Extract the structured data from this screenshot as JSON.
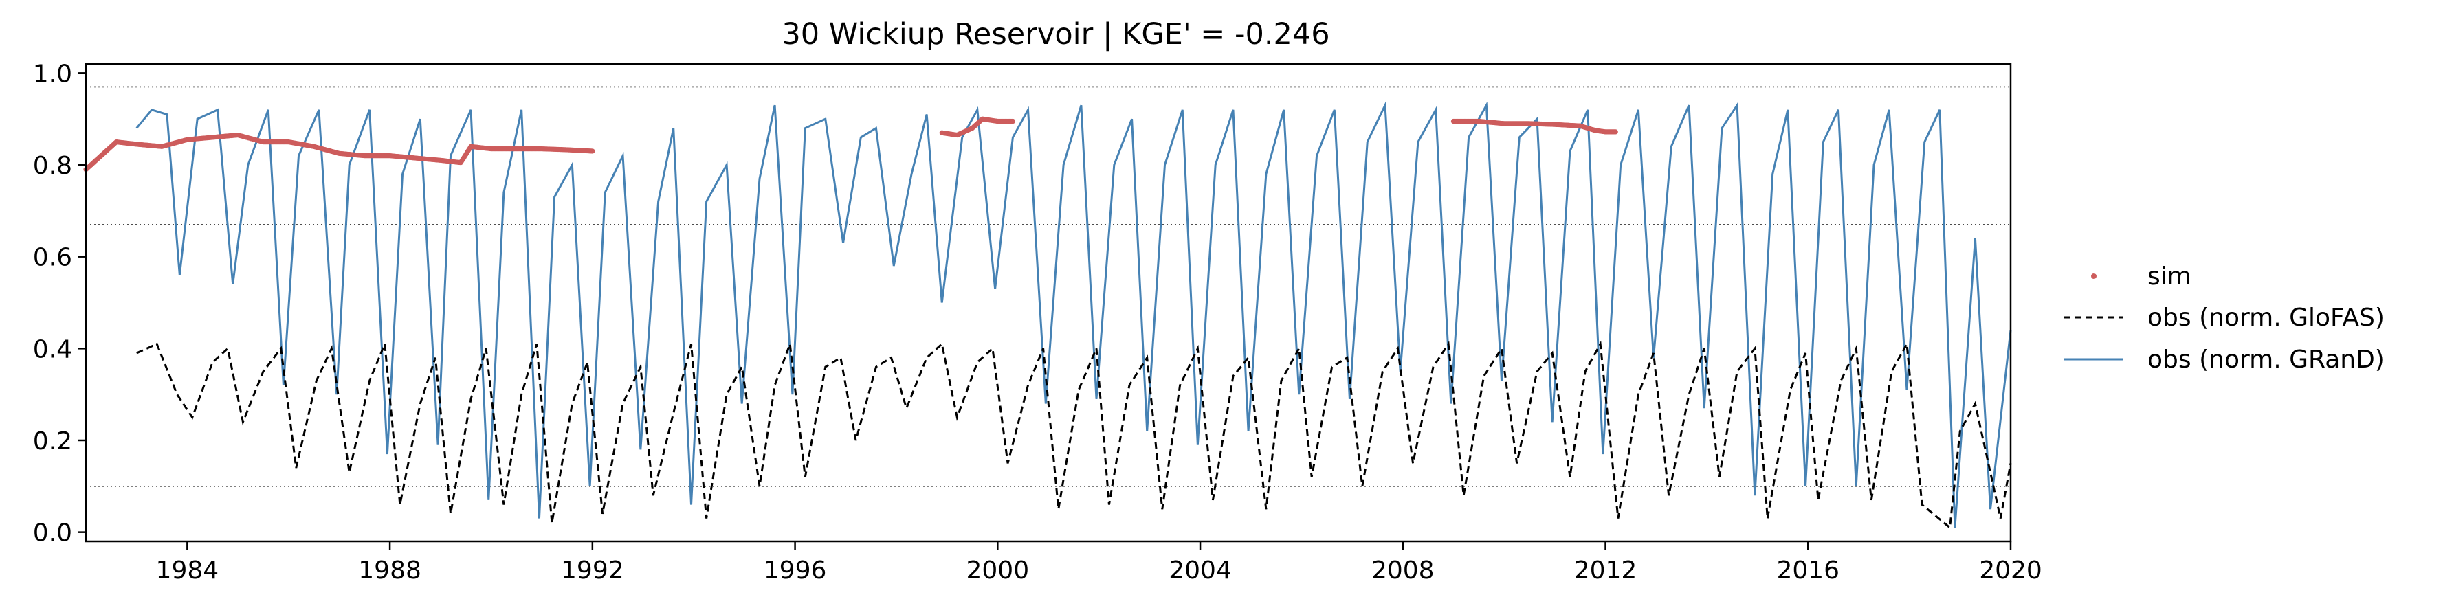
{
  "chart_data": {
    "type": "line",
    "title": "30  Wickiup Reservoir | KGE' = -0.246",
    "xlabel": "",
    "ylabel": "",
    "xlim": [
      1982.0,
      2020.0
    ],
    "ylim": [
      -0.02,
      1.02
    ],
    "x_ticks": [
      1984,
      1988,
      1992,
      1996,
      2000,
      2004,
      2008,
      2012,
      2016,
      2020
    ],
    "x_tick_labels": [
      "1984",
      "1988",
      "1992",
      "1996",
      "2000",
      "2004",
      "2008",
      "2012",
      "2016",
      "2020"
    ],
    "y_ticks": [
      0.0,
      0.2,
      0.4,
      0.6,
      0.8,
      1.0
    ],
    "y_tick_labels": [
      "0.0",
      "0.2",
      "0.4",
      "0.6",
      "0.8",
      "1.0"
    ],
    "reference_lines": [
      0.97,
      0.67,
      0.1
    ],
    "legend_position": "right",
    "grid": false,
    "colors": {
      "sim": "#cd5c5c",
      "obs_glofas": "#000000",
      "obs_grand": "#4682b4"
    },
    "series": [
      {
        "name": "sim",
        "style": "points",
        "segments": [
          [
            [
              1982.0,
              0.79
            ],
            [
              1982.3,
              0.82
            ],
            [
              1982.6,
              0.85
            ],
            [
              1983.0,
              0.845
            ],
            [
              1983.5,
              0.84
            ],
            [
              1984.0,
              0.855
            ],
            [
              1984.5,
              0.86
            ],
            [
              1985.0,
              0.865
            ],
            [
              1985.5,
              0.85
            ],
            [
              1986.0,
              0.85
            ],
            [
              1986.5,
              0.84
            ],
            [
              1987.0,
              0.825
            ],
            [
              1987.5,
              0.82
            ],
            [
              1988.0,
              0.82
            ],
            [
              1988.5,
              0.815
            ],
            [
              1989.0,
              0.81
            ],
            [
              1989.4,
              0.805
            ],
            [
              1989.6,
              0.84
            ],
            [
              1990.0,
              0.835
            ],
            [
              1990.5,
              0.835
            ],
            [
              1991.0,
              0.835
            ],
            [
              1991.5,
              0.833
            ],
            [
              1992.0,
              0.83
            ]
          ],
          [
            [
              1998.9,
              0.87
            ],
            [
              1999.2,
              0.865
            ],
            [
              1999.5,
              0.88
            ],
            [
              1999.7,
              0.9
            ],
            [
              2000.0,
              0.895
            ],
            [
              2000.3,
              0.895
            ]
          ],
          [
            [
              2009.0,
              0.895
            ],
            [
              2009.5,
              0.895
            ],
            [
              2010.0,
              0.89
            ],
            [
              2010.5,
              0.89
            ],
            [
              2011.0,
              0.888
            ],
            [
              2011.5,
              0.885
            ],
            [
              2011.8,
              0.875
            ],
            [
              2012.0,
              0.872
            ],
            [
              2012.2,
              0.872
            ]
          ]
        ]
      },
      {
        "name": "obs (norm. GloFAS)",
        "style": "dashed",
        "x": [
          1983.0,
          1983.4,
          1983.8,
          1984.1,
          1984.5,
          1984.8,
          1985.1,
          1985.5,
          1985.85,
          1986.15,
          1986.55,
          1986.85,
          1987.2,
          1987.6,
          1987.9,
          1988.2,
          1988.6,
          1988.9,
          1989.2,
          1989.6,
          1989.9,
          1990.25,
          1990.6,
          1990.9,
          1991.2,
          1991.6,
          1991.9,
          1992.2,
          1992.6,
          1992.95,
          1993.2,
          1993.6,
          1993.95,
          1994.25,
          1994.65,
          1994.95,
          1995.3,
          1995.6,
          1995.9,
          1996.2,
          1996.6,
          1996.9,
          1997.2,
          1997.6,
          1997.9,
          1998.2,
          1998.6,
          1998.9,
          1999.2,
          1999.6,
          1999.9,
          2000.2,
          2000.6,
          2000.9,
          2001.2,
          2001.6,
          2001.95,
          2002.2,
          2002.6,
          2002.95,
          2003.25,
          2003.6,
          2003.95,
          2004.25,
          2004.65,
          2004.95,
          2005.3,
          2005.6,
          2005.95,
          2006.2,
          2006.6,
          2006.9,
          2007.2,
          2007.6,
          2007.9,
          2008.2,
          2008.6,
          2008.9,
          2009.2,
          2009.6,
          2009.95,
          2010.25,
          2010.65,
          2010.95,
          2011.3,
          2011.6,
          2011.9,
          2012.25,
          2012.65,
          2012.95,
          2013.25,
          2013.65,
          2013.95,
          2014.25,
          2014.6,
          2014.95,
          2015.2,
          2015.65,
          2015.95,
          2016.2,
          2016.65,
          2016.95,
          2017.25,
          2017.65,
          2017.95,
          2018.25,
          2018.8,
          2019.0,
          2019.3,
          2019.8,
          2020.0
        ],
        "y": [
          0.39,
          0.41,
          0.3,
          0.25,
          0.37,
          0.4,
          0.24,
          0.35,
          0.4,
          0.14,
          0.33,
          0.4,
          0.13,
          0.33,
          0.41,
          0.06,
          0.28,
          0.38,
          0.04,
          0.29,
          0.4,
          0.06,
          0.3,
          0.41,
          0.02,
          0.28,
          0.37,
          0.04,
          0.28,
          0.36,
          0.08,
          0.26,
          0.41,
          0.03,
          0.3,
          0.36,
          0.1,
          0.32,
          0.41,
          0.12,
          0.36,
          0.38,
          0.2,
          0.36,
          0.38,
          0.27,
          0.38,
          0.41,
          0.25,
          0.37,
          0.4,
          0.15,
          0.32,
          0.4,
          0.05,
          0.31,
          0.4,
          0.06,
          0.32,
          0.38,
          0.05,
          0.32,
          0.4,
          0.07,
          0.34,
          0.38,
          0.05,
          0.33,
          0.4,
          0.12,
          0.36,
          0.38,
          0.1,
          0.35,
          0.4,
          0.15,
          0.36,
          0.41,
          0.08,
          0.34,
          0.4,
          0.15,
          0.35,
          0.39,
          0.12,
          0.35,
          0.41,
          0.03,
          0.3,
          0.39,
          0.08,
          0.3,
          0.4,
          0.12,
          0.35,
          0.4,
          0.03,
          0.31,
          0.39,
          0.07,
          0.33,
          0.4,
          0.07,
          0.35,
          0.41,
          0.06,
          0.01,
          0.22,
          0.28,
          0.03,
          0.15
        ]
      },
      {
        "name": "obs (norm. GRanD)",
        "style": "solid",
        "x": [
          1983.0,
          1983.3,
          1983.6,
          1983.85,
          1984.2,
          1984.6,
          1984.9,
          1985.2,
          1985.6,
          1985.9,
          1986.2,
          1986.6,
          1986.95,
          1987.2,
          1987.6,
          1987.95,
          1988.25,
          1988.6,
          1988.95,
          1989.2,
          1989.6,
          1989.95,
          1990.25,
          1990.6,
          1990.95,
          1991.25,
          1991.6,
          1991.95,
          1992.25,
          1992.6,
          1992.95,
          1993.3,
          1993.6,
          1993.95,
          1994.25,
          1994.65,
          1994.95,
          1995.3,
          1995.6,
          1995.95,
          1996.2,
          1996.6,
          1996.95,
          1997.3,
          1997.6,
          1997.95,
          1998.3,
          1998.6,
          1998.9,
          1999.3,
          1999.6,
          1999.95,
          2000.3,
          2000.6,
          2000.95,
          2001.3,
          2001.65,
          2001.95,
          2002.3,
          2002.65,
          2002.95,
          2003.3,
          2003.65,
          2003.95,
          2004.3,
          2004.65,
          2004.95,
          2005.3,
          2005.65,
          2005.95,
          2006.3,
          2006.65,
          2006.95,
          2007.3,
          2007.65,
          2007.95,
          2008.3,
          2008.65,
          2008.95,
          2009.3,
          2009.65,
          2009.95,
          2010.3,
          2010.65,
          2010.95,
          2011.3,
          2011.65,
          2011.95,
          2012.3,
          2012.65,
          2012.95,
          2013.3,
          2013.65,
          2013.95,
          2014.3,
          2014.6,
          2014.95,
          2015.3,
          2015.6,
          2015.95,
          2016.3,
          2016.6,
          2016.95,
          2017.3,
          2017.6,
          2017.95,
          2018.3,
          2018.6,
          2018.9,
          2019.3,
          2019.6,
          2020.0
        ],
        "y": [
          0.88,
          0.92,
          0.91,
          0.56,
          0.9,
          0.92,
          0.54,
          0.8,
          0.92,
          0.32,
          0.82,
          0.92,
          0.3,
          0.8,
          0.92,
          0.17,
          0.78,
          0.9,
          0.19,
          0.82,
          0.92,
          0.07,
          0.74,
          0.92,
          0.03,
          0.73,
          0.8,
          0.1,
          0.74,
          0.82,
          0.18,
          0.72,
          0.88,
          0.06,
          0.72,
          0.8,
          0.28,
          0.77,
          0.93,
          0.3,
          0.88,
          0.9,
          0.63,
          0.86,
          0.88,
          0.58,
          0.78,
          0.91,
          0.5,
          0.86,
          0.92,
          0.53,
          0.86,
          0.92,
          0.28,
          0.8,
          0.93,
          0.29,
          0.8,
          0.9,
          0.22,
          0.8,
          0.92,
          0.19,
          0.8,
          0.92,
          0.22,
          0.78,
          0.92,
          0.3,
          0.82,
          0.92,
          0.29,
          0.85,
          0.93,
          0.35,
          0.85,
          0.92,
          0.28,
          0.86,
          0.93,
          0.33,
          0.86,
          0.9,
          0.24,
          0.83,
          0.92,
          0.17,
          0.8,
          0.92,
          0.38,
          0.84,
          0.93,
          0.27,
          0.88,
          0.93,
          0.08,
          0.78,
          0.92,
          0.1,
          0.85,
          0.92,
          0.1,
          0.8,
          0.92,
          0.31,
          0.85,
          0.92,
          0.01,
          0.64,
          0.05,
          0.44
        ]
      }
    ]
  }
}
